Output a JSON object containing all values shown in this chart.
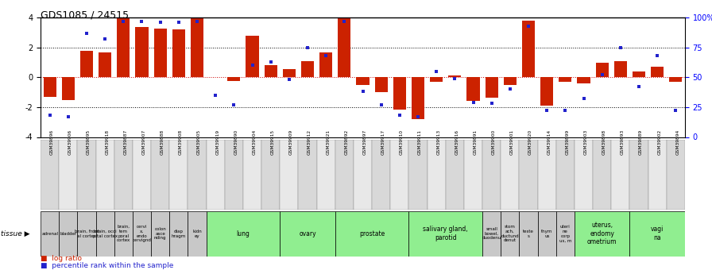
{
  "title": "GDS1085 / 24515",
  "samples": [
    "GSM39896",
    "GSM39906",
    "GSM39895",
    "GSM39918",
    "GSM39887",
    "GSM39907",
    "GSM39888",
    "GSM39908",
    "GSM39905",
    "GSM39919",
    "GSM39890",
    "GSM39904",
    "GSM39915",
    "GSM39909",
    "GSM39912",
    "GSM39921",
    "GSM39892",
    "GSM39897",
    "GSM39917",
    "GSM39910",
    "GSM39911",
    "GSM39913",
    "GSM39916",
    "GSM39891",
    "GSM39900",
    "GSM39901",
    "GSM39920",
    "GSM39914",
    "GSM39899",
    "GSM39903",
    "GSM39898",
    "GSM39893",
    "GSM39889",
    "GSM39902",
    "GSM39894"
  ],
  "log_ratio": [
    -1.3,
    -1.5,
    1.8,
    1.7,
    3.95,
    3.4,
    3.3,
    3.2,
    3.95,
    0.0,
    -0.25,
    2.8,
    0.8,
    0.55,
    1.1,
    1.7,
    3.95,
    -0.5,
    -1.0,
    -2.15,
    -2.8,
    -0.3,
    0.15,
    -1.6,
    -1.35,
    -0.5,
    3.8,
    -1.9,
    -0.3,
    -0.4,
    1.0,
    1.1,
    0.4,
    0.7,
    -0.3
  ],
  "percentile": [
    18,
    17,
    87,
    82,
    97,
    97,
    96,
    96,
    97,
    35,
    27,
    60,
    63,
    48,
    75,
    68,
    97,
    38,
    27,
    18,
    17,
    55,
    49,
    29,
    28,
    40,
    93,
    22,
    22,
    32,
    52,
    75,
    42,
    68,
    22
  ],
  "tissue_groups": [
    {
      "label": "adrenal",
      "start": 0,
      "end": 1,
      "color": "#c8c8c8"
    },
    {
      "label": "bladder",
      "start": 1,
      "end": 2,
      "color": "#c8c8c8"
    },
    {
      "label": "brain, front\nal cortex",
      "start": 2,
      "end": 3,
      "color": "#c8c8c8"
    },
    {
      "label": "brain, occi\npital cortex",
      "start": 3,
      "end": 4,
      "color": "#c8c8c8"
    },
    {
      "label": "brain,\ntem\nporal\ncortex",
      "start": 4,
      "end": 5,
      "color": "#c8c8c8"
    },
    {
      "label": "cervi\nx,\nendo\ncervignd",
      "start": 5,
      "end": 6,
      "color": "#c8c8c8"
    },
    {
      "label": "colon\nasce\nnding",
      "start": 6,
      "end": 7,
      "color": "#c8c8c8"
    },
    {
      "label": "diap\nhragm",
      "start": 7,
      "end": 8,
      "color": "#c8c8c8"
    },
    {
      "label": "kidn\ney",
      "start": 8,
      "end": 9,
      "color": "#c8c8c8"
    },
    {
      "label": "lung",
      "start": 9,
      "end": 13,
      "color": "#90ee90"
    },
    {
      "label": "ovary",
      "start": 13,
      "end": 16,
      "color": "#90ee90"
    },
    {
      "label": "prostate",
      "start": 16,
      "end": 20,
      "color": "#90ee90"
    },
    {
      "label": "salivary gland,\nparotid",
      "start": 20,
      "end": 24,
      "color": "#90ee90"
    },
    {
      "label": "small\nbowel,\nduodenu",
      "start": 24,
      "end": 25,
      "color": "#c8c8c8"
    },
    {
      "label": "stom\nach,\nductund\ndenut",
      "start": 25,
      "end": 26,
      "color": "#c8c8c8"
    },
    {
      "label": "teste\ns",
      "start": 26,
      "end": 27,
      "color": "#c8c8c8"
    },
    {
      "label": "thym\nus",
      "start": 27,
      "end": 28,
      "color": "#c8c8c8"
    },
    {
      "label": "uteri\nne\ncorp\nus, m",
      "start": 28,
      "end": 29,
      "color": "#c8c8c8"
    },
    {
      "label": "uterus,\nendomy\nometrium",
      "start": 29,
      "end": 32,
      "color": "#90ee90"
    },
    {
      "label": "vagi\nna",
      "start": 32,
      "end": 35,
      "color": "#90ee90"
    }
  ],
  "ylim": [
    -4,
    4
  ],
  "bar_color": "#cc2200",
  "dot_color": "#2222cc",
  "grid_color": "#000000",
  "zero_line_color": "#cc0000"
}
